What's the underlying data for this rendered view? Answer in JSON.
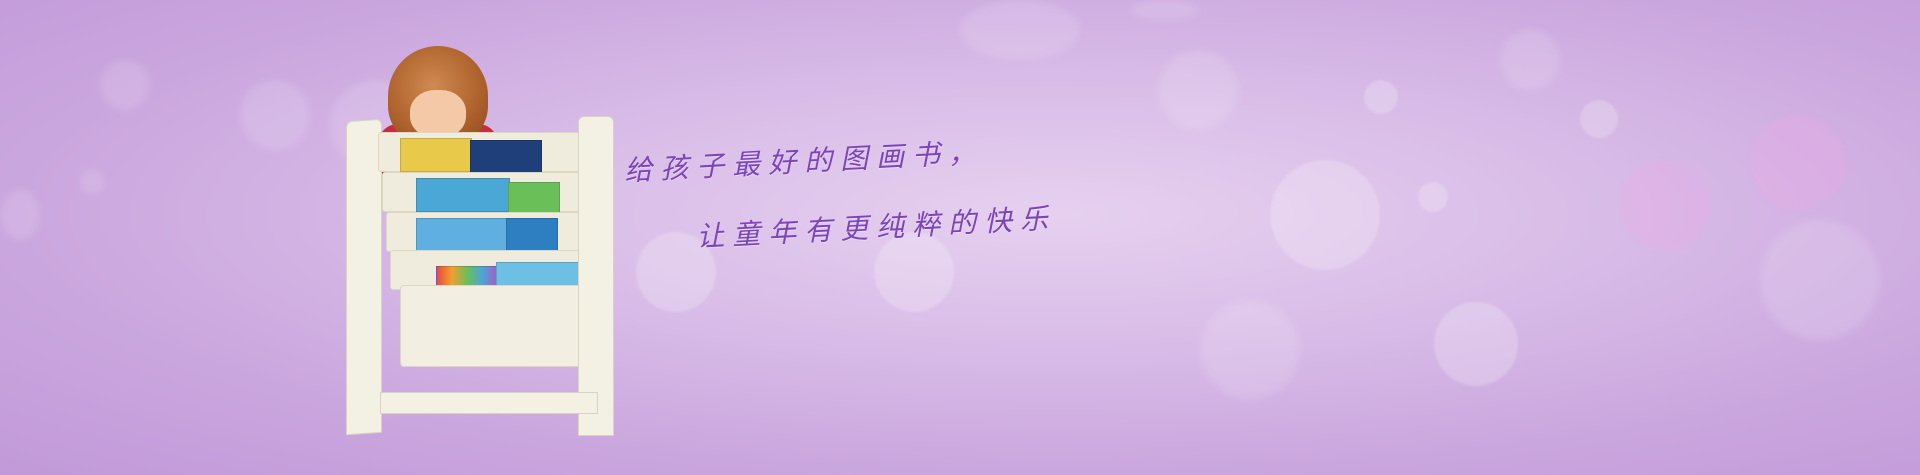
{
  "banner": {
    "slogan_line1": "给孩子最好的图画书，",
    "slogan_line2": "让童年有更纯粹的快乐",
    "colors": {
      "background": "#d3b4e3",
      "text": "#7b45b8",
      "shelf": "#f3f0e4"
    },
    "illustration": "girl-with-bookshelf"
  }
}
